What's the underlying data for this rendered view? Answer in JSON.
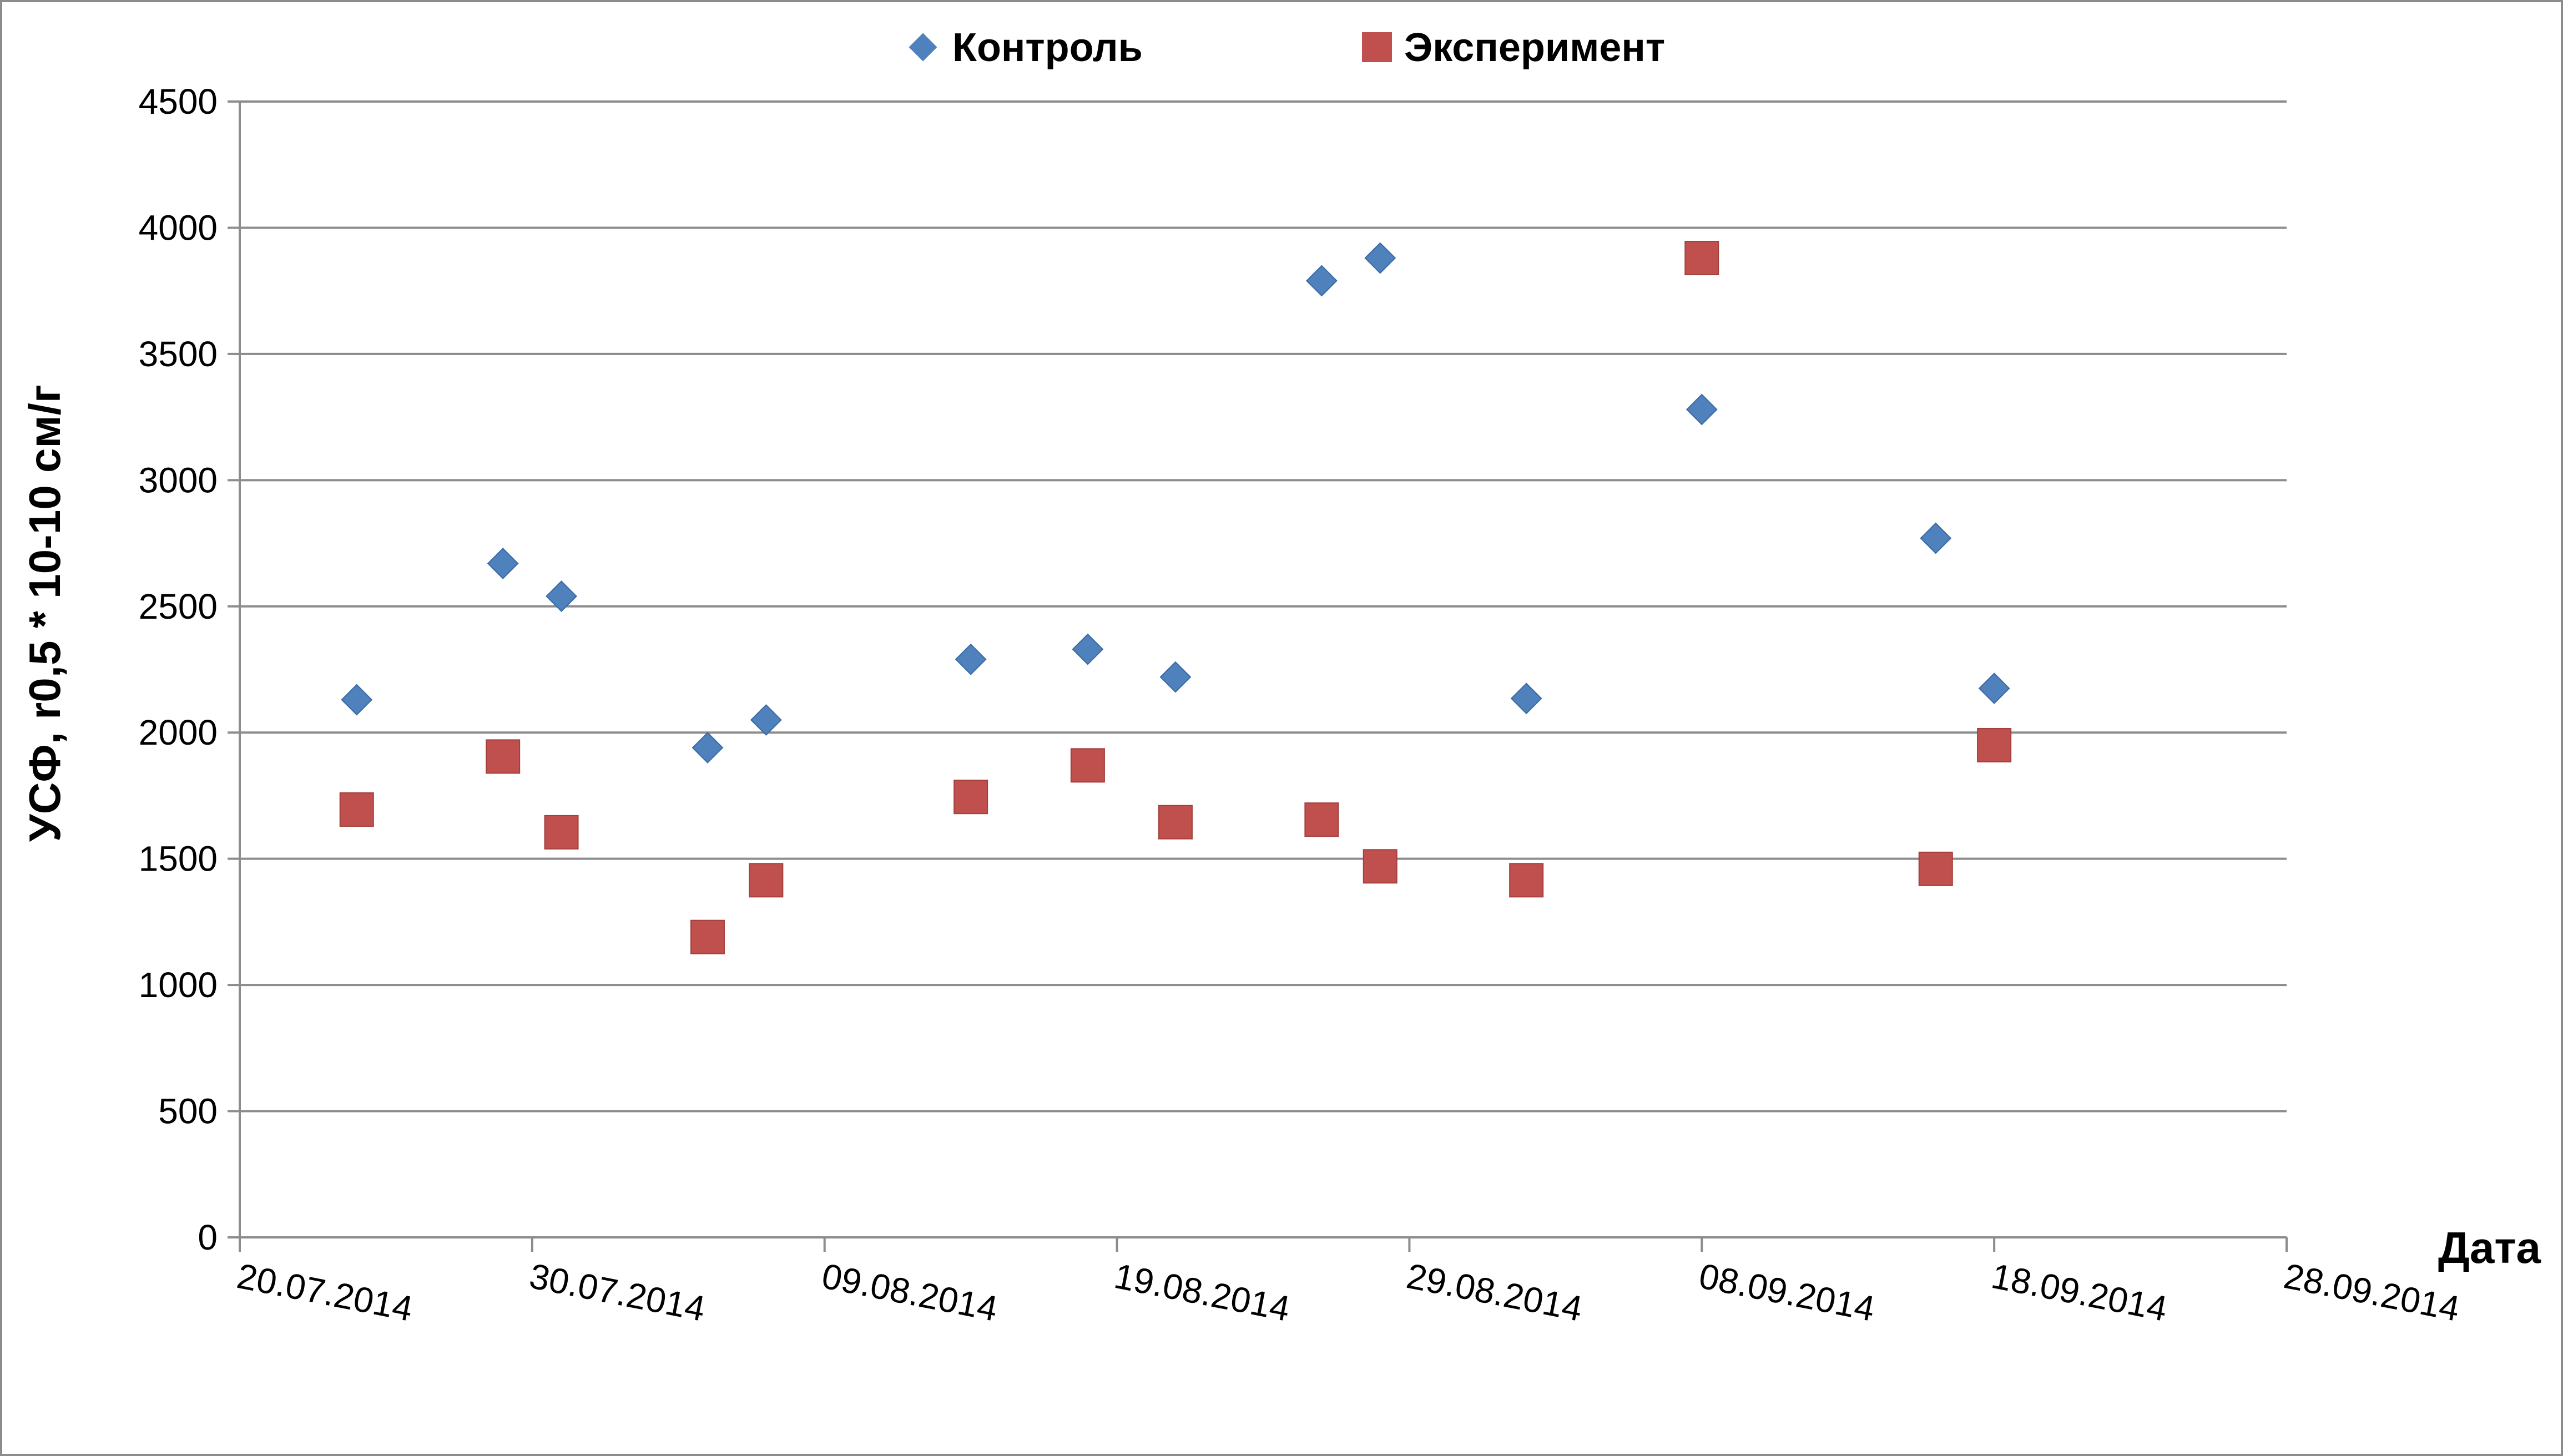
{
  "chart_data": {
    "type": "scatter",
    "title": "",
    "xlabel": "Дата",
    "ylabel": "УСФ, r0,5 * 10-10 см/г",
    "ylim": [
      0,
      4500
    ],
    "yticks": [
      0,
      500,
      1000,
      1500,
      2000,
      2500,
      3000,
      3500,
      4000,
      4500
    ],
    "xlim": [
      "2014-07-20",
      "2014-09-28"
    ],
    "xticks": [
      "20.07.2014",
      "30.07.2014",
      "09.08.2014",
      "19.08.2014",
      "29.08.2014",
      "08.09.2014",
      "18.09.2014",
      "28.09.2014"
    ],
    "grid": "horizontal",
    "legend": "top-center",
    "series": [
      {
        "name": "Контроль",
        "marker": "diamond",
        "color": "#4f81bd",
        "points": [
          [
            "2014-07-24",
            2130
          ],
          [
            "2014-07-29",
            2670
          ],
          [
            "2014-07-31",
            2540
          ],
          [
            "2014-08-05",
            1940
          ],
          [
            "2014-08-07",
            2050
          ],
          [
            "2014-08-14",
            2290
          ],
          [
            "2014-08-18",
            2330
          ],
          [
            "2014-08-21",
            2220
          ],
          [
            "2014-08-26",
            3790
          ],
          [
            "2014-08-28",
            3880
          ],
          [
            "2014-09-02",
            2135
          ],
          [
            "2014-09-08",
            3280
          ],
          [
            "2014-09-16",
            2770
          ],
          [
            "2014-09-18",
            2175
          ]
        ]
      },
      {
        "name": "Эксперимент",
        "marker": "square",
        "color": "#c0504d",
        "points": [
          [
            "2014-07-24",
            1695
          ],
          [
            "2014-07-29",
            1905
          ],
          [
            "2014-07-31",
            1605
          ],
          [
            "2014-08-05",
            1190
          ],
          [
            "2014-08-07",
            1415
          ],
          [
            "2014-08-14",
            1745
          ],
          [
            "2014-08-18",
            1870
          ],
          [
            "2014-08-21",
            1645
          ],
          [
            "2014-08-26",
            1655
          ],
          [
            "2014-08-28",
            1470
          ],
          [
            "2014-09-02",
            1415
          ],
          [
            "2014-09-08",
            3880
          ],
          [
            "2014-09-16",
            1460
          ],
          [
            "2014-09-18",
            1950
          ]
        ]
      }
    ]
  }
}
